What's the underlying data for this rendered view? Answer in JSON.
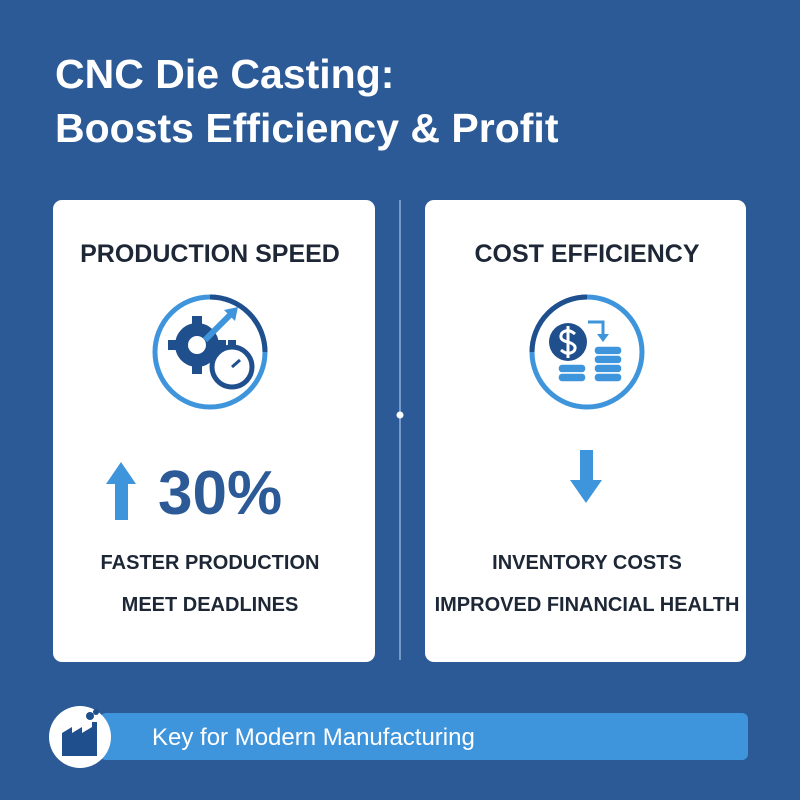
{
  "header": {
    "title_lines": [
      "CNC Die Casting:",
      "Boosts Efficiency & Profit"
    ]
  },
  "cards": [
    {
      "heading": "PRODUCTION SPEED",
      "stat": "30%",
      "lines": [
        "FASTER PRODUCTION",
        "MEET DEADLINES"
      ]
    },
    {
      "heading": "COST EFFICIENCY",
      "lines": [
        "INVENTORY COSTS",
        "IMPROVED FINANCIAL HEALTH"
      ]
    }
  ],
  "footer": {
    "text": "Key for Modern Manufacturing"
  }
}
